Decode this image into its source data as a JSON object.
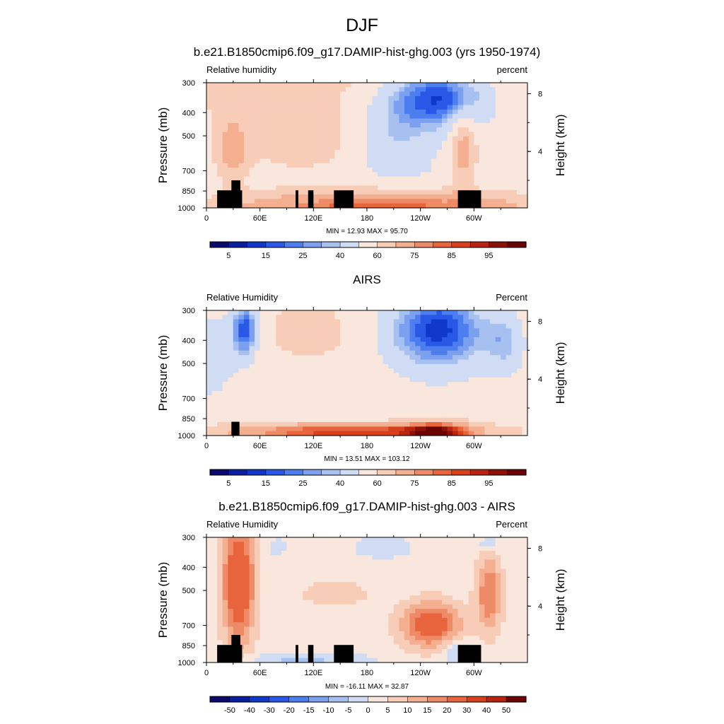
{
  "figure": {
    "title": "DJF"
  },
  "colorbar_abs": {
    "labels": [
      "5",
      "15",
      "25",
      "40",
      "60",
      "75",
      "85",
      "95"
    ],
    "colors": [
      "#0a0a6e",
      "#0a1fa0",
      "#1038c8",
      "#2a58e6",
      "#4c7ef0",
      "#7ca0f0",
      "#a6c0f0",
      "#cfdcf4",
      "#f9e6dc",
      "#f8cdb8",
      "#f4ae90",
      "#ee8a66",
      "#e8643c",
      "#d8401c",
      "#b82410",
      "#8c1206",
      "#6a0404"
    ]
  },
  "colorbar_diff": {
    "labels": [
      "-50",
      "-40",
      "-30",
      "-20",
      "-15",
      "-10",
      "-5",
      "0",
      "5",
      "10",
      "15",
      "20",
      "30",
      "40",
      "50"
    ],
    "colors": [
      "#0a0a6e",
      "#0a1fa0",
      "#1038c8",
      "#2a58e6",
      "#4c7ef0",
      "#7ca0f0",
      "#a6c0f0",
      "#cfdcf4",
      "#f9e6dc",
      "#f8cdb8",
      "#f4ae90",
      "#ee8a66",
      "#e8643c",
      "#d8401c",
      "#b82410",
      "#6a0404"
    ]
  },
  "axes": {
    "ylabel": "Pressure (mb)",
    "ylabel_right": "Height (km)",
    "pressure_ticks": [
      "300",
      "400",
      "500",
      "700",
      "850",
      "1000"
    ],
    "height_ticks": [
      "8",
      "4"
    ],
    "lon_ticks": [
      "0",
      "60E",
      "120E",
      "180",
      "120W",
      "60W"
    ]
  },
  "chart_data": [
    {
      "type": "heatmap",
      "title": "b.e21.B1850cmip6.f09_g17.DAMIP-hist-ghg.003 (yrs 1950-1974)",
      "left_label": "Relative humidity",
      "right_label": "percent",
      "stats": "MIN =  12.93  MAX =  95.70",
      "min": 12.93,
      "max": 95.7,
      "units": "percent",
      "x_range_deg": [
        0,
        360
      ],
      "pressure_range_mb": [
        1000,
        300
      ],
      "colorbar": "abs"
    },
    {
      "type": "heatmap",
      "title": "AIRS",
      "left_label": "Relative Humidity",
      "right_label": "Percent",
      "stats": "MIN =  13.51  MAX = 103.12",
      "min": 13.51,
      "max": 103.12,
      "units": "Percent",
      "x_range_deg": [
        0,
        360
      ],
      "pressure_range_mb": [
        1000,
        300
      ],
      "colorbar": "abs"
    },
    {
      "type": "heatmap",
      "title": "b.e21.B1850cmip6.f09_g17.DAMIP-hist-ghg.003 - AIRS",
      "left_label": "Relative Humidity",
      "right_label": "Percent",
      "stats": "MIN = -16.11  MAX =  32.87",
      "min": -16.11,
      "max": 32.87,
      "units": "Percent",
      "x_range_deg": [
        0,
        360
      ],
      "pressure_range_mb": [
        1000,
        300
      ],
      "colorbar": "diff"
    }
  ]
}
